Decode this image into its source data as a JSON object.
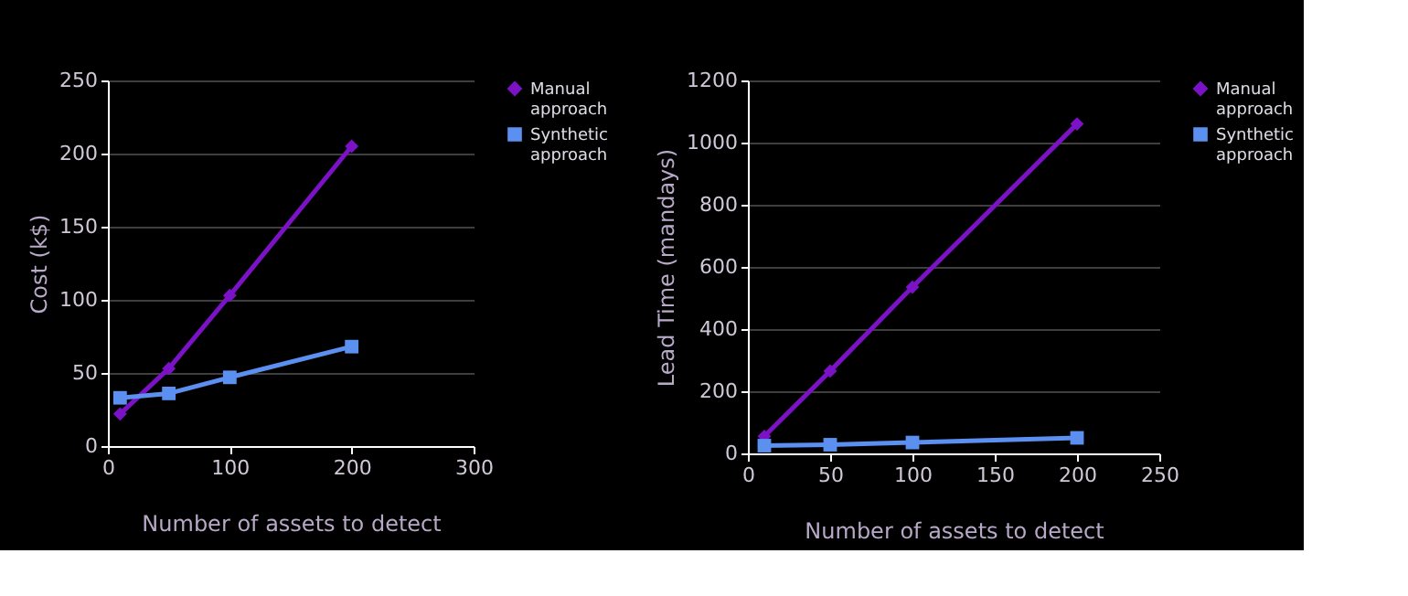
{
  "chart_data": [
    {
      "type": "line",
      "xlabel": "Number of assets to detect",
      "ylabel": "Cost (k$)",
      "x": [
        10,
        50,
        100,
        200
      ],
      "xlim": [
        0,
        300
      ],
      "xticks": [
        0,
        100,
        200,
        300
      ],
      "ylim": [
        0,
        250
      ],
      "yticks": [
        0,
        50,
        100,
        150,
        200,
        250
      ],
      "grid": "y",
      "legend": "right",
      "series": [
        {
          "name": "Manual approach",
          "color": "#7b12c6",
          "marker": "diamond",
          "values": [
            22,
            53,
            103,
            205
          ]
        },
        {
          "name": "Synthetic approach",
          "color": "#5b8ff0",
          "marker": "square",
          "values": [
            33,
            36,
            47,
            68
          ]
        }
      ]
    },
    {
      "type": "line",
      "xlabel": "Number of assets to detect",
      "ylabel": "Lead Time (mandays)",
      "x": [
        10,
        50,
        100,
        200
      ],
      "xlim": [
        0,
        250
      ],
      "xticks": [
        0,
        50,
        100,
        150,
        200,
        250
      ],
      "ylim": [
        0,
        1200
      ],
      "yticks": [
        0,
        200,
        400,
        600,
        800,
        1000,
        1200
      ],
      "grid": "y",
      "legend": "right",
      "series": [
        {
          "name": "Manual approach",
          "color": "#7b12c6",
          "marker": "diamond",
          "values": [
            55,
            265,
            535,
            1060
          ]
        },
        {
          "name": "Synthetic approach",
          "color": "#5b8ff0",
          "marker": "square",
          "values": [
            25,
            28,
            35,
            50
          ]
        }
      ]
    }
  ]
}
